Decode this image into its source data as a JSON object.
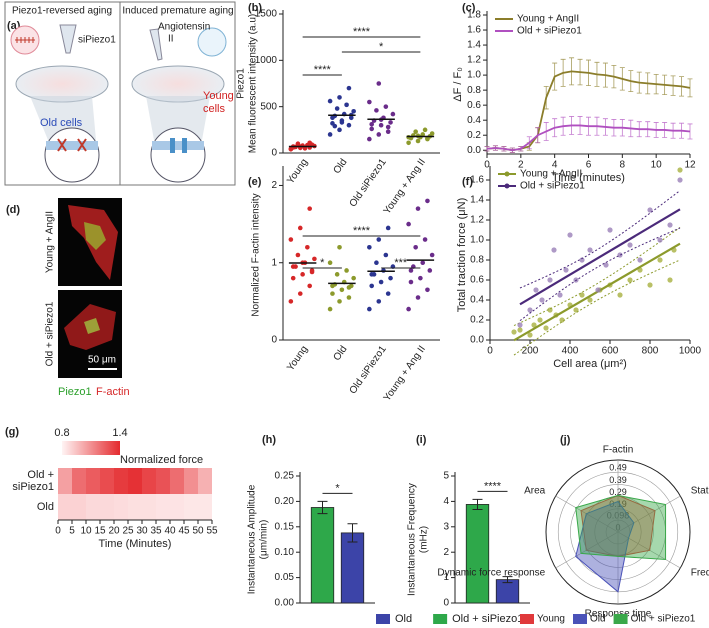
{
  "illustrations": {
    "a": {
      "label": "(a)",
      "left_title": "Piezo1-reversed aging",
      "right_title": "Induced premature aging",
      "left_agent": "siPiezo1",
      "right_agent": [
        "Angiotensin",
        "II"
      ],
      "left_cells": "Old cells",
      "right_cells": [
        "Young",
        "cells"
      ]
    },
    "d": {
      "label": "(d)",
      "top_image": "Young + AngII",
      "bottom_image": "Old + siPiezo1",
      "scale_bar": "50 μm",
      "stain_green": "Piezo1",
      "stain_red": "F-actin"
    }
  },
  "chart_data": [
    {
      "type": "strip",
      "label": "(b)",
      "ylabel": [
        "Piezo1",
        "Mean fluorescent intensity (a.u)"
      ],
      "ylim": [
        0,
        1500
      ],
      "yticks": [
        0,
        500,
        1000,
        1500
      ],
      "series": [
        {
          "name": "Young",
          "color": "#d62728",
          "values": [
            40,
            55,
            60,
            70,
            80,
            90,
            65,
            50,
            75,
            100,
            85,
            45,
            70,
            110,
            60
          ]
        },
        {
          "name": "Old",
          "color": "#2b3590",
          "values": [
            200,
            250,
            300,
            320,
            350,
            380,
            400,
            420,
            450,
            480,
            520,
            560,
            600,
            700,
            380,
            330,
            410,
            290
          ]
        },
        {
          "name": "Old siPiezo1",
          "color": "#6a2c8a",
          "values": [
            150,
            200,
            230,
            260,
            300,
            330,
            350,
            380,
            420,
            460,
            500,
            550,
            750,
            280,
            310,
            360
          ]
        },
        {
          "name": "Young + Ang II",
          "color": "#8c9a2c",
          "values": [
            110,
            130,
            150,
            160,
            170,
            180,
            190,
            200,
            210,
            230,
            250,
            170,
            185,
            160
          ]
        }
      ],
      "annotations": [
        {
          "text": "****",
          "between": [
            "Young",
            "Old"
          ]
        },
        {
          "text": "*",
          "between": [
            "Old",
            "Young + Ang II"
          ]
        },
        {
          "text": "****",
          "between": [
            "Young",
            "Young + Ang II"
          ]
        }
      ]
    },
    {
      "type": "line",
      "label": "(c)",
      "xlabel": "Time (minutes)",
      "ylabel": "ΔF / F₀",
      "xlim": [
        0,
        12
      ],
      "xticks": [
        0,
        2,
        4,
        6,
        8,
        10,
        12
      ],
      "ylim": [
        -0.05,
        1.8
      ],
      "yticks": [
        {
          "value": 0,
          "label": "0.0"
        },
        0.2,
        0.4,
        0.6,
        0.8,
        {
          "value": 1,
          "label": "1.0"
        },
        1.2,
        1.4,
        1.6,
        1.8
      ],
      "x": [
        0,
        0.5,
        1,
        1.5,
        2,
        2.5,
        3,
        3.5,
        4,
        4.5,
        5,
        5.5,
        6,
        6.5,
        7,
        7.5,
        8,
        8.5,
        9,
        9.5,
        10,
        10.5,
        11,
        11.5,
        12
      ],
      "legend": "upper left",
      "series": [
        {
          "name": "Young + AngII",
          "color": "#8b7d2a",
          "values": [
            0.02,
            0.03,
            0.02,
            0.0,
            0.02,
            0.05,
            0.2,
            0.7,
            0.98,
            1.03,
            1.05,
            1.04,
            1.03,
            1.01,
            1.0,
            0.98,
            0.95,
            0.92,
            0.9,
            0.89,
            0.88,
            0.87,
            0.86,
            0.85,
            0.83
          ],
          "errors": [
            0.03,
            0.03,
            0.03,
            0.03,
            0.03,
            0.05,
            0.1,
            0.15,
            0.18,
            0.18,
            0.18,
            0.17,
            0.17,
            0.16,
            0.16,
            0.15,
            0.15,
            0.14,
            0.14,
            0.14,
            0.13,
            0.13,
            0.13,
            0.13,
            0.12
          ]
        },
        {
          "name": "Old + siPiezo1",
          "color": "#b050c0",
          "values": [
            0.02,
            0.03,
            0.02,
            0.0,
            0.02,
            0.1,
            0.2,
            0.25,
            0.3,
            0.32,
            0.33,
            0.33,
            0.32,
            0.32,
            0.31,
            0.3,
            0.3,
            0.29,
            0.28,
            0.28,
            0.27,
            0.27,
            0.26,
            0.26,
            0.25
          ],
          "errors": [
            0.03,
            0.03,
            0.03,
            0.03,
            0.03,
            0.08,
            0.1,
            0.12,
            0.12,
            0.12,
            0.12,
            0.12,
            0.12,
            0.12,
            0.11,
            0.11,
            0.11,
            0.11,
            0.1,
            0.1,
            0.1,
            0.1,
            0.1,
            0.1,
            0.1
          ]
        }
      ]
    },
    {
      "type": "strip",
      "label": "(e)",
      "ylabel": "Normalized F-actin intensity",
      "ylim": [
        0,
        2.2
      ],
      "yticks": [
        0,
        1,
        2
      ],
      "series": [
        {
          "name": "Young",
          "color": "#d62728",
          "values": [
            0.5,
            0.6,
            0.7,
            0.8,
            0.85,
            0.9,
            0.95,
            1.0,
            1.05,
            1.1,
            1.2,
            1.3,
            1.45,
            1.7,
            0.95,
            1.0,
            0.88
          ]
        },
        {
          "name": "Old",
          "color": "#8c9a2c",
          "values": [
            0.4,
            0.5,
            0.55,
            0.6,
            0.65,
            0.7,
            0.72,
            0.75,
            0.8,
            0.85,
            0.9,
            1.0,
            1.2,
            0.68,
            0.7
          ]
        },
        {
          "name": "Old siPiezo1",
          "color": "#2b3590",
          "values": [
            0.4,
            0.5,
            0.6,
            0.7,
            0.75,
            0.8,
            0.85,
            0.9,
            0.95,
            1.0,
            1.1,
            1.2,
            1.3,
            1.45,
            0.85
          ]
        },
        {
          "name": "Young + Ang II",
          "color": "#6a2c8a",
          "values": [
            0.4,
            0.55,
            0.65,
            0.75,
            0.8,
            0.9,
            0.95,
            1.0,
            1.1,
            1.2,
            1.3,
            1.5,
            1.7,
            1.8,
            0.9
          ]
        }
      ],
      "annotations": [
        {
          "text": "*",
          "between": [
            "Young",
            "Old"
          ]
        },
        {
          "text": "***",
          "between": [
            "Old siPiezo1",
            "Young + Ang II"
          ]
        },
        {
          "text": "****",
          "between": [
            "Young",
            "Young + Ang II"
          ]
        }
      ]
    },
    {
      "type": "scatter",
      "label": "(f)",
      "xlabel": "Cell area (μm²)",
      "ylabel": "Total traction force (μN)",
      "xlim": [
        0,
        1000
      ],
      "xticks": [
        0,
        200,
        400,
        600,
        800,
        1000
      ],
      "ylim": [
        0,
        1.7
      ],
      "yticks": [
        {
          "value": 0,
          "label": "0.0"
        },
        0.2,
        0.4,
        0.6,
        0.8,
        {
          "value": 1,
          "label": "1.0"
        },
        1.2,
        1.4,
        1.6
      ],
      "fit": true,
      "legend": "upper left",
      "series": [
        {
          "name": "Young + AngII",
          "color": "#a8b040",
          "line_color": "#8c9a2c",
          "x": [
            120,
            150,
            200,
            220,
            250,
            280,
            300,
            330,
            360,
            400,
            430,
            460,
            500,
            550,
            600,
            650,
            700,
            750,
            800,
            850,
            900,
            950,
            920
          ],
          "values": [
            0.08,
            0.1,
            0.05,
            0.15,
            0.2,
            0.12,
            0.3,
            0.25,
            0.2,
            0.35,
            0.3,
            0.45,
            0.4,
            0.5,
            0.55,
            0.45,
            0.6,
            0.7,
            0.55,
            0.8,
            0.6,
            1.7,
            0.9
          ]
        },
        {
          "name": "Old + siPiezo1",
          "color": "#9a80b8",
          "line_color": "#4b2a7a",
          "x": [
            150,
            200,
            230,
            260,
            300,
            320,
            350,
            380,
            400,
            430,
            460,
            500,
            540,
            580,
            600,
            650,
            700,
            750,
            800,
            850,
            900,
            950
          ],
          "values": [
            0.15,
            0.3,
            0.5,
            0.4,
            0.6,
            0.9,
            0.45,
            0.7,
            1.05,
            0.6,
            0.8,
            0.9,
            0.5,
            0.75,
            1.1,
            0.85,
            0.95,
            0.8,
            1.3,
            1.0,
            1.15,
            1.6
          ]
        }
      ]
    },
    {
      "type": "heatmap",
      "label": "(g)",
      "xlabel": "Time (Minutes)",
      "rows": [
        [
          "Old +",
          "siPiezo1"
        ],
        [
          "Old"
        ]
      ],
      "bins": [
        0,
        5,
        10,
        15,
        20,
        25,
        30,
        35,
        40,
        45,
        50,
        55
      ],
      "xlim": [
        0,
        55
      ],
      "xticks": [
        0,
        5,
        10,
        15,
        20,
        25,
        30,
        35,
        40,
        45,
        50,
        55
      ],
      "values": [
        [
          1.05,
          1.2,
          1.25,
          1.3,
          1.35,
          1.38,
          1.32,
          1.28,
          1.2,
          1.1,
          1.0
        ],
        [
          0.9,
          0.9,
          0.88,
          0.88,
          0.87,
          0.86,
          0.86,
          0.85,
          0.85,
          0.84,
          0.84
        ]
      ],
      "clim": [
        0.8,
        1.4
      ],
      "cticks": [
        0.8,
        1.4
      ],
      "colorbar_label": "Normalized force",
      "cmap": [
        "#fff4f4",
        "#e42a2e"
      ]
    },
    {
      "type": "bar",
      "label": "(h)",
      "ylabel": [
        "Instantaneous Amplitude",
        "(μm/min)"
      ],
      "ylim": [
        0,
        0.25
      ],
      "yticks": [
        {
          "value": 0,
          "label": "0.00"
        },
        0.05,
        {
          "value": 0.1,
          "label": "0.10"
        },
        0.15,
        {
          "value": 0.2,
          "label": "0.20"
        },
        0.25
      ],
      "legend": "bottom",
      "series": [
        {
          "name": "Old + siPiezo1",
          "color": "#2ea84a",
          "values": [
            0.188
          ],
          "errors": [
            0.012
          ]
        },
        {
          "name": "Old",
          "color": "#3c44a8",
          "values": [
            0.138
          ],
          "errors": [
            0.018
          ]
        }
      ],
      "annotations": [
        {
          "text": "*"
        }
      ]
    },
    {
      "type": "bar",
      "label": "(i)",
      "ylabel": [
        "Instantaneous Frequency",
        "(mHz)"
      ],
      "ylim": [
        0,
        5
      ],
      "yticks": [
        0,
        1,
        2,
        3,
        4,
        5
      ],
      "series": [
        {
          "name": "Old + siPiezo1",
          "color": "#2ea84a",
          "values": [
            3.88
          ],
          "errors": [
            0.2
          ]
        },
        {
          "name": "Old",
          "color": "#3c44a8",
          "values": [
            0.92
          ],
          "errors": [
            0.12
          ]
        }
      ],
      "annotations": [
        {
          "text": "****"
        }
      ]
    },
    {
      "type": "radar",
      "label": "(j)",
      "axes": [
        "F-actin",
        "Static force",
        "Frequency",
        "Response time",
        "Dynamic force response",
        "Area"
      ],
      "rlim": [
        0,
        0.59
      ],
      "rticks": [
        0,
        0.098,
        0.19,
        0.29,
        0.39,
        0.49
      ],
      "legend": "bottom",
      "series": [
        {
          "name": "Young",
          "color": "#e0393b",
          "values": [
            0.3,
            0.35,
            0.3,
            0.2,
            0.3,
            0.35
          ]
        },
        {
          "name": "Old",
          "color": "#4a52b8",
          "values": [
            0.25,
            0.15,
            0.1,
            0.49,
            0.4,
            0.3
          ]
        },
        {
          "name": "Old + siPiezo1",
          "color": "#3aa84a",
          "values": [
            0.3,
            0.45,
            0.45,
            0.2,
            0.35,
            0.4
          ]
        }
      ]
    }
  ]
}
